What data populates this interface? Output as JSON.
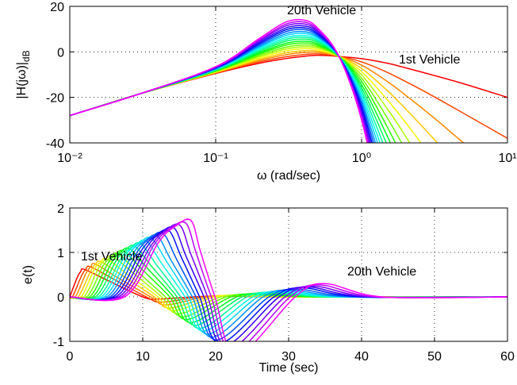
{
  "chart_data": [
    {
      "type": "line",
      "xscale": "log",
      "grid": true,
      "xlabel": "ω (rad/sec)",
      "ylabel": "|H(jω)|",
      "ylabel_subscript": "dB",
      "xlim": [
        0.01,
        10
      ],
      "ylim": [
        -40,
        20
      ],
      "xticks": [
        {
          "value": 0.01,
          "label": "10⁻²"
        },
        {
          "value": 0.1,
          "label": "10⁻¹"
        },
        {
          "value": 1,
          "label": "10⁰"
        },
        {
          "value": 10,
          "label": "10¹"
        }
      ],
      "yticks": [
        -40,
        -20,
        0,
        20
      ],
      "annotations": [
        {
          "text": "20th Vehicle",
          "color": "#ff00ff"
        },
        {
          "text": "1st Vehicle",
          "color": "#ff0000"
        }
      ],
      "x": [
        0.01,
        0.03,
        0.1,
        0.2,
        0.3,
        0.4,
        0.5,
        0.7,
        1,
        1.5,
        2,
        3,
        5,
        10
      ],
      "series": [
        {
          "color": "#ff0000",
          "values": [
            -28,
            -18.5,
            -9.5,
            -5,
            -3,
            -2,
            -1.5,
            -2,
            -3,
            -5,
            -7,
            -10,
            -14,
            -20
          ]
        },
        {
          "color": "#ff4300",
          "values": [
            -28,
            -18.5,
            -9.3,
            -4.4,
            -2.2,
            -1.2,
            -0.9,
            -2,
            -4.4,
            -9,
            -13,
            -19,
            -27,
            -38
          ]
        },
        {
          "color": "#ff8600",
          "values": [
            -28,
            -18.5,
            -9.2,
            -3.8,
            -1.3,
            -0.3,
            -0.2,
            -2,
            -5.8,
            -13,
            -19,
            -28,
            -40,
            -56
          ]
        },
        {
          "color": "#ffc900",
          "values": [
            -28,
            -18.5,
            -9.0,
            -3.3,
            -0.5,
            0.5,
            0.4,
            -2,
            -7.3,
            -17,
            -25,
            -37,
            -53,
            null
          ]
        },
        {
          "color": "#f1ff00",
          "values": [
            -28,
            -18.5,
            -8.9,
            -2.7,
            0.4,
            1.4,
            1.0,
            -2,
            -8.7,
            -21,
            -31,
            -46,
            null,
            null
          ]
        },
        {
          "color": "#afff00",
          "values": [
            -28,
            -18.5,
            -8.7,
            -2.1,
            1.2,
            2.2,
            1.7,
            -2,
            -10.1,
            -25,
            -37,
            -55,
            null,
            null
          ]
        },
        {
          "color": "#6cff00",
          "values": [
            -28,
            -18.5,
            -8.5,
            -1.5,
            2.0,
            3.0,
            2.3,
            -2,
            -11.5,
            -29,
            -43,
            null,
            null,
            null
          ]
        },
        {
          "color": "#28ff00",
          "values": [
            -28,
            -18.5,
            -8.4,
            -0.9,
            2.9,
            3.9,
            2.9,
            -2,
            -12.9,
            -33,
            -49,
            null,
            null,
            null
          ]
        },
        {
          "color": "#00ff1b",
          "values": [
            -28,
            -18.5,
            -8.2,
            -0.4,
            3.7,
            4.7,
            3.5,
            -2,
            -14.4,
            -37,
            -55,
            null,
            null,
            null
          ]
        },
        {
          "color": "#00ff5e",
          "values": [
            -28,
            -18.5,
            -8.1,
            0.2,
            4.6,
            5.6,
            4.2,
            -2,
            -15.8,
            -41,
            null,
            null,
            null,
            null
          ]
        },
        {
          "color": "#00ffa1",
          "values": [
            -28,
            -18.5,
            -7.9,
            0.8,
            5.4,
            6.4,
            4.8,
            -2,
            -17.2,
            -45,
            null,
            null,
            null,
            null
          ]
        },
        {
          "color": "#00ffe4",
          "values": [
            -28,
            -18.5,
            -7.7,
            1.4,
            6.2,
            7.2,
            5.4,
            -2,
            -18.6,
            -49,
            null,
            null,
            null,
            null
          ]
        },
        {
          "color": "#00d7ff",
          "values": [
            -28,
            -18.5,
            -7.6,
            2.0,
            7.1,
            8.1,
            6.1,
            -2,
            -20.0,
            -53,
            null,
            null,
            null,
            null
          ]
        },
        {
          "color": "#0094ff",
          "values": [
            -28,
            -18.5,
            -7.4,
            2.5,
            7.9,
            8.9,
            6.7,
            -2,
            -21.5,
            -57,
            null,
            null,
            null,
            null
          ]
        },
        {
          "color": "#0051ff",
          "values": [
            -28,
            -18.5,
            -7.3,
            3.1,
            8.8,
            9.8,
            7.3,
            -2,
            -22.9,
            -61,
            null,
            null,
            null,
            null
          ]
        },
        {
          "color": "#000eff",
          "values": [
            -28,
            -18.5,
            -7.1,
            3.7,
            9.6,
            10.6,
            7.9,
            -2,
            -24.3,
            -65,
            null,
            null,
            null,
            null
          ]
        },
        {
          "color": "#3600ff",
          "values": [
            -28,
            -18.5,
            -6.9,
            4.3,
            10.4,
            11.4,
            8.6,
            -2,
            -25.7,
            -69,
            null,
            null,
            null,
            null
          ]
        },
        {
          "color": "#7900ff",
          "values": [
            -28,
            -18.5,
            -6.8,
            4.9,
            11.3,
            12.3,
            9.2,
            -2,
            -27.1,
            -73,
            null,
            null,
            null,
            null
          ]
        },
        {
          "color": "#bc00ff",
          "values": [
            -28,
            -18.5,
            -6.6,
            5.4,
            12.1,
            13.1,
            9.8,
            -2,
            -28.6,
            -77,
            null,
            null,
            null,
            null
          ]
        },
        {
          "color": "#ff00ff",
          "values": [
            -28,
            -18.5,
            -6.5,
            6.0,
            13.0,
            14.0,
            10.5,
            -2,
            -30.0,
            -81,
            null,
            null,
            null,
            null
          ]
        }
      ]
    },
    {
      "type": "line",
      "grid": true,
      "xlabel": "Time (sec)",
      "ylabel": "e(t)",
      "xlim": [
        0,
        60
      ],
      "ylim": [
        -1,
        2
      ],
      "xticks": [
        0,
        10,
        20,
        30,
        40,
        50,
        60
      ],
      "yticks": [
        -1,
        0,
        1,
        2
      ],
      "annotations": [
        {
          "text": "1st Vehicle",
          "color": "#ff0000"
        },
        {
          "text": "20th Vehicle",
          "color": "#ff00ff"
        }
      ],
      "series": [
        {
          "color": "#ff0000",
          "x": [
            0,
            1,
            1.5,
            2,
            5.2,
            10,
            12,
            17,
            21,
            29,
            60
          ],
          "values": [
            0,
            0.43,
            0.57,
            0.62,
            0.37,
            0,
            -0.05,
            0,
            0.02,
            0,
            0
          ]
        },
        {
          "color": "#ff4300",
          "x": [
            0,
            0.4,
            1.6,
            2.2,
            2.8,
            5.9,
            10.5,
            12.6,
            17.7,
            21.7,
            29.7,
            60
          ],
          "values": [
            0,
            0.01,
            0.47,
            0.62,
            0.68,
            0.41,
            0,
            -0.12,
            0,
            0.02,
            0,
            0
          ]
        },
        {
          "color": "#ff8600",
          "x": [
            0,
            0.8,
            2.2,
            2.9,
            3.5,
            6.5,
            11.1,
            13.2,
            18.5,
            22.5,
            30.5,
            60
          ],
          "values": [
            0,
            0.01,
            0.52,
            0.68,
            0.74,
            0.44,
            0,
            -0.18,
            0,
            0.02,
            0,
            0
          ]
        },
        {
          "color": "#ffc900",
          "x": [
            0,
            1.2,
            2.8,
            3.5,
            4.3,
            7.2,
            11.6,
            13.7,
            19.2,
            23.2,
            31.2,
            60
          ],
          "values": [
            0,
            0.01,
            0.56,
            0.73,
            0.79,
            0.48,
            0,
            -0.25,
            0,
            0.03,
            0,
            0
          ]
        },
        {
          "color": "#f1ff00",
          "x": [
            0,
            1.6,
            3.3,
            4.2,
            5.1,
            7.9,
            12.1,
            14.3,
            19.9,
            23.9,
            31.9,
            60
          ],
          "values": [
            0,
            0.01,
            0.6,
            0.78,
            0.85,
            0.51,
            0,
            -0.31,
            0,
            0.03,
            0,
            0
          ]
        },
        {
          "color": "#afff00",
          "x": [
            0,
            2.0,
            3.9,
            4.9,
            5.9,
            8.6,
            12.6,
            14.9,
            20.7,
            24.7,
            32.7,
            60
          ],
          "values": [
            0,
            0.01,
            0.64,
            0.84,
            0.91,
            0.55,
            0,
            -0.38,
            0,
            0.04,
            0,
            0
          ]
        },
        {
          "color": "#6cff00",
          "x": [
            0,
            2.4,
            4.5,
            5.6,
            6.6,
            9.2,
            13.1,
            15.5,
            21.4,
            25.4,
            33.4,
            60
          ],
          "values": [
            0,
            0.01,
            0.68,
            0.89,
            0.97,
            0.58,
            0,
            -0.45,
            0,
            0.05,
            0,
            0
          ]
        },
        {
          "color": "#28ff00",
          "x": [
            0,
            2.8,
            5.1,
            6.2,
            7.4,
            9.9,
            13.7,
            16.0,
            22.1,
            26.1,
            34.1,
            60
          ],
          "values": [
            0,
            0.01,
            0.72,
            0.94,
            1.03,
            0.62,
            0,
            -0.51,
            0,
            0.06,
            0,
            0
          ]
        },
        {
          "color": "#00ff1b",
          "x": [
            0,
            3.2,
            5.7,
            6.9,
            8.2,
            10.6,
            14.2,
            16.6,
            22.9,
            26.9,
            34.9,
            60
          ],
          "values": [
            0,
            0.01,
            0.76,
            1.0,
            1.08,
            0.65,
            0,
            -0.58,
            0,
            0.07,
            0,
            0
          ]
        },
        {
          "color": "#00ff5e",
          "x": [
            0,
            3.6,
            6.3,
            7.6,
            8.9,
            11.2,
            14.7,
            17.2,
            23.6,
            27.6,
            35.6,
            60
          ],
          "values": [
            0,
            0.01,
            0.8,
            1.05,
            1.14,
            0.69,
            0,
            -0.64,
            0,
            0.08,
            0,
            0
          ]
        },
        {
          "color": "#00ffa1",
          "x": [
            0,
            4.0,
            6.9,
            8.3,
            9.7,
            11.9,
            15.2,
            17.8,
            24.3,
            28.3,
            36.3,
            60
          ],
          "values": [
            0,
            0.01,
            0.84,
            1.1,
            1.2,
            0.72,
            0,
            -0.71,
            0,
            0.1,
            0,
            0
          ]
        },
        {
          "color": "#00ffe4",
          "x": [
            0,
            4.4,
            7.4,
            9.0,
            10.5,
            12.6,
            15.8,
            18.3,
            25.1,
            29.1,
            37.1,
            60
          ],
          "values": [
            0,
            0.01,
            0.88,
            1.16,
            1.26,
            0.75,
            0,
            -0.77,
            0,
            0.11,
            0,
            0
          ]
        },
        {
          "color": "#00d7ff",
          "x": [
            0,
            4.8,
            8.0,
            9.6,
            11.2,
            13.3,
            16.3,
            18.9,
            25.8,
            29.8,
            37.8,
            60
          ],
          "values": [
            0,
            0.01,
            0.92,
            1.21,
            1.32,
            0.79,
            0,
            -0.84,
            0,
            0.13,
            0,
            0
          ]
        },
        {
          "color": "#0094ff",
          "x": [
            0,
            5.2,
            8.6,
            10.3,
            12.0,
            13.9,
            16.8,
            19.5,
            26.5,
            30.5,
            38.5,
            60
          ],
          "values": [
            0,
            0.01,
            0.96,
            1.26,
            1.37,
            0.82,
            0,
            -0.91,
            0,
            0.15,
            0,
            0
          ]
        },
        {
          "color": "#0051ff",
          "x": [
            0,
            5.6,
            9.2,
            11.0,
            12.8,
            14.6,
            17.3,
            20.1,
            27.3,
            31.3,
            39.3,
            60
          ],
          "values": [
            0,
            0.01,
            1.0,
            1.32,
            1.43,
            0.86,
            0,
            -0.97,
            0,
            0.17,
            0,
            0
          ]
        },
        {
          "color": "#000eff",
          "x": [
            0,
            6.0,
            9.8,
            11.7,
            13.6,
            15.3,
            17.8,
            20.6,
            28.0,
            32.0,
            40.0,
            60
          ],
          "values": [
            0,
            0.01,
            1.04,
            1.37,
            1.49,
            0.89,
            0,
            -1.04,
            0,
            0.2,
            0,
            0
          ]
        },
        {
          "color": "#3600ff",
          "x": [
            0,
            6.4,
            10.4,
            12.3,
            14.3,
            15.9,
            18.4,
            21.2,
            28.7,
            32.7,
            40.7,
            60
          ],
          "values": [
            0,
            0.01,
            1.08,
            1.42,
            1.55,
            0.93,
            0,
            -1.1,
            0,
            0.22,
            0,
            0
          ]
        },
        {
          "color": "#7900ff",
          "x": [
            0,
            6.8,
            11.0,
            13.0,
            15.1,
            16.6,
            18.9,
            21.8,
            29.5,
            33.5,
            41.5,
            60
          ],
          "values": [
            0,
            0.01,
            1.12,
            1.48,
            1.61,
            0.96,
            0,
            -1.17,
            0,
            0.24,
            0,
            0
          ]
        },
        {
          "color": "#bc00ff",
          "x": [
            0,
            7.2,
            11.5,
            13.7,
            15.9,
            17.3,
            19.4,
            22.4,
            30.2,
            34.2,
            42.2,
            60
          ],
          "values": [
            0,
            0.01,
            1.16,
            1.53,
            1.66,
            1.0,
            0,
            -1.23,
            0,
            0.27,
            0,
            0
          ]
        },
        {
          "color": "#ff00ff",
          "x": [
            0,
            7.6,
            12.1,
            14.4,
            16.6,
            17.9,
            19.9,
            22.9,
            30.9,
            34.9,
            42.9,
            60
          ],
          "values": [
            0,
            0.01,
            1.21,
            1.58,
            1.72,
            1.03,
            0,
            -1.3,
            0,
            0.3,
            0,
            0
          ]
        }
      ]
    }
  ]
}
